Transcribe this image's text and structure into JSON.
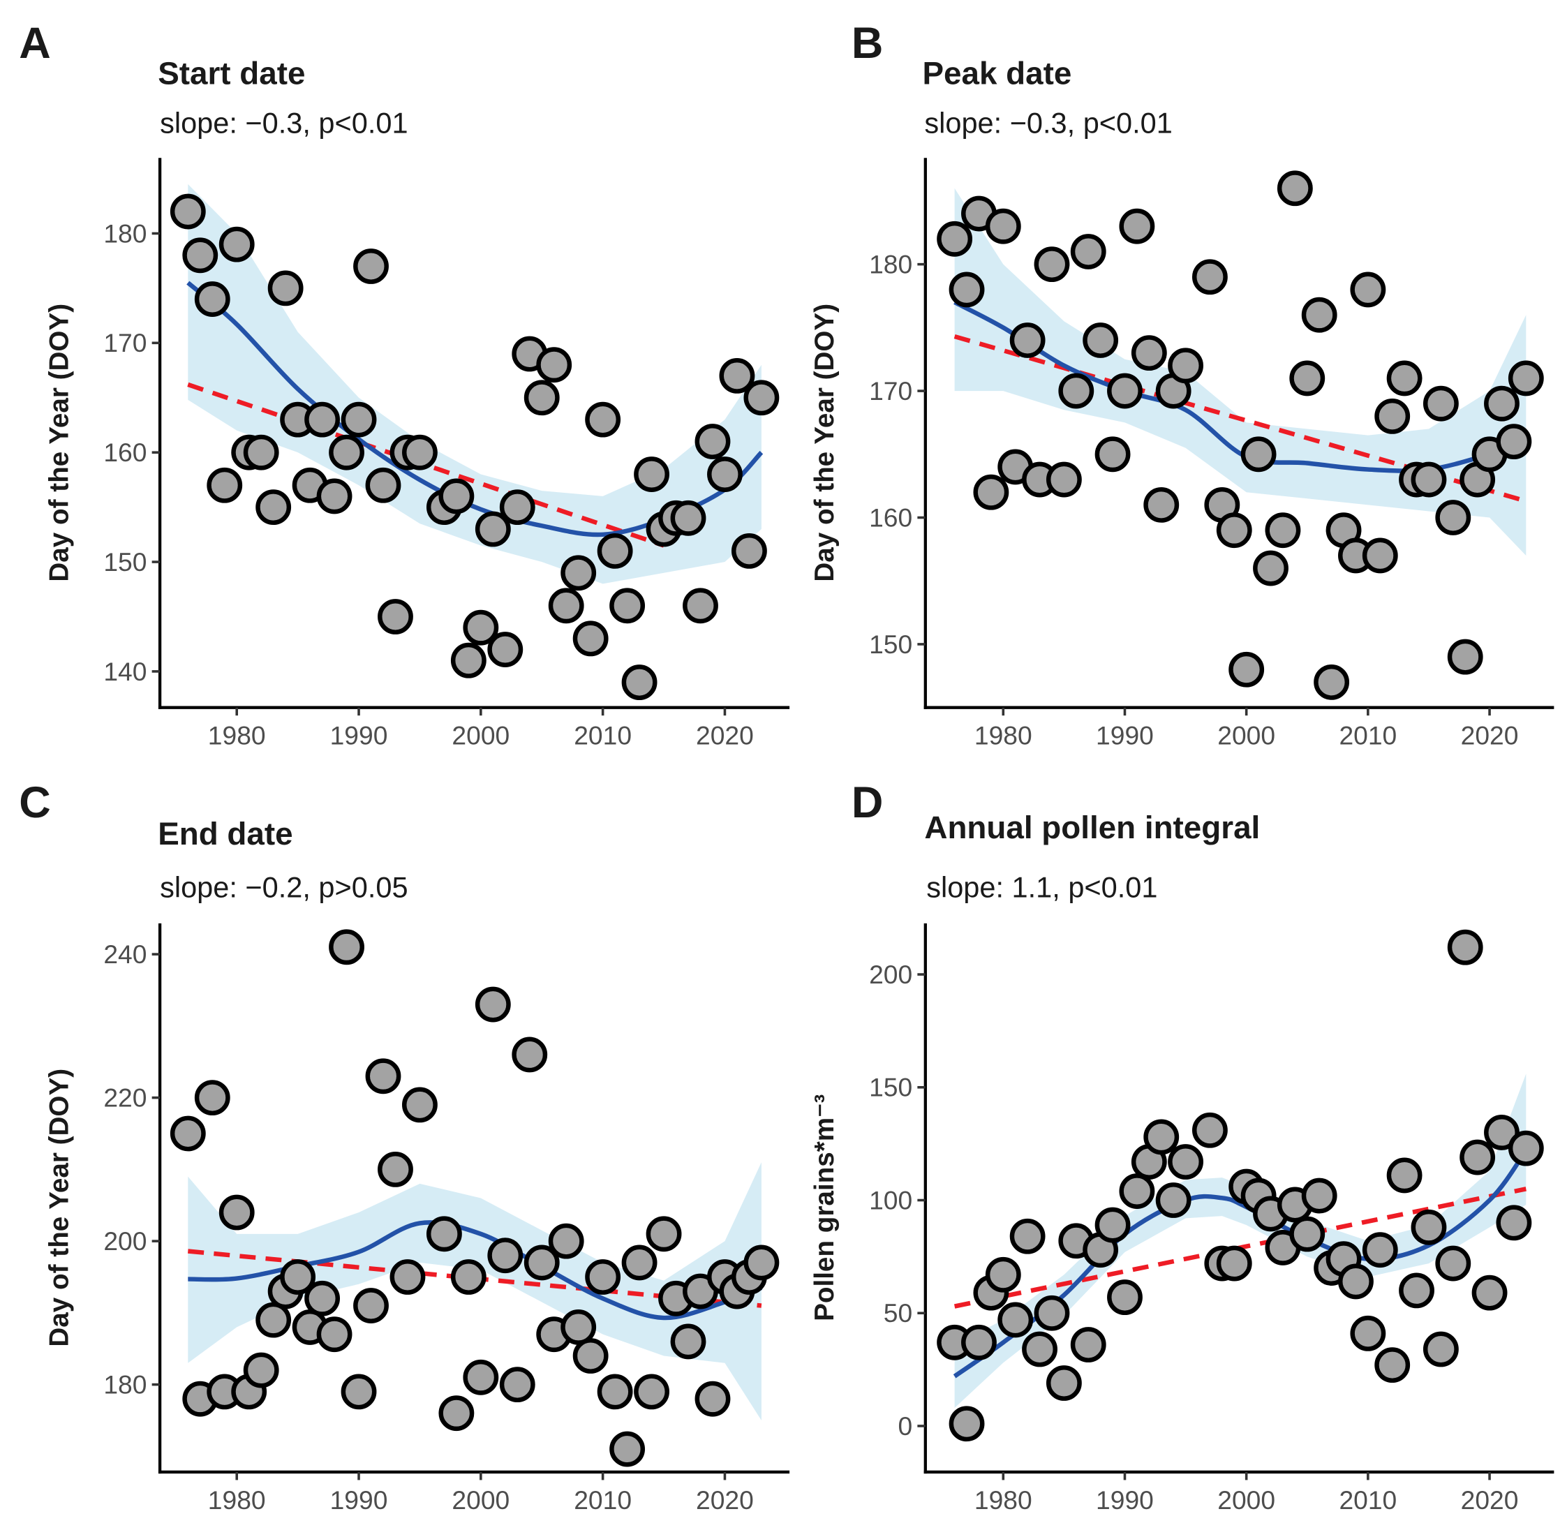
{
  "chart_data": [
    {
      "type": "scatter",
      "panel_label": "A",
      "title": "Start date",
      "subtitle": "slope: −0.3, p<0.01",
      "xlabel": "",
      "ylabel": "Day of the Year (DOY)",
      "xlim": [
        1973.7,
        2025.3
      ],
      "ylim": [
        136.7,
        186.9
      ],
      "xticks": [
        1980,
        1990,
        2000,
        2010,
        2020
      ],
      "yticks": [
        140,
        150,
        160,
        170,
        180
      ],
      "x": [
        1976,
        1977,
        1978,
        1979,
        1980,
        1981,
        1982,
        1983,
        1984,
        1985,
        1986,
        1987,
        1988,
        1989,
        1990,
        1991,
        1992,
        1993,
        1994,
        1995,
        1997,
        1998,
        1999,
        2000,
        2001,
        2002,
        2003,
        2004,
        2005,
        2006,
        2007,
        2008,
        2009,
        2010,
        2011,
        2012,
        2013,
        2014,
        2015,
        2016,
        2017,
        2018,
        2019,
        2020,
        2021,
        2022,
        2023
      ],
      "y": [
        182,
        178,
        174,
        157,
        179,
        160,
        160,
        155,
        175,
        163,
        157,
        163,
        156,
        160,
        163,
        177,
        157,
        145,
        160,
        160,
        155,
        156,
        141,
        144,
        153,
        142,
        155,
        169,
        165,
        168,
        146,
        149,
        143,
        163,
        151,
        146,
        139,
        158,
        153,
        154,
        154,
        146,
        161,
        158,
        167,
        151,
        165
      ],
      "linear_fit": {
        "x": [
          1976,
          2015
        ],
        "y": [
          166.2,
          151.5
        ]
      },
      "smooth": {
        "x": [
          1976,
          1980,
          1985,
          1990,
          1995,
          2000,
          2005,
          2010,
          2015,
          2020,
          2023
        ],
        "y": [
          175.5,
          171.7,
          165.8,
          161.2,
          157.5,
          154.8,
          153.3,
          152.5,
          153.9,
          156.6,
          160
        ],
        "lo": [
          164.8,
          162,
          160,
          157,
          153.5,
          151.5,
          150,
          148,
          149,
          150,
          153
        ],
        "hi": [
          184.5,
          180,
          171,
          165,
          161,
          158,
          156.5,
          156,
          158.5,
          163,
          168
        ]
      }
    },
    {
      "type": "scatter",
      "panel_label": "B",
      "title": "Peak date",
      "subtitle": "slope: −0.3, p<0.01",
      "xlabel": "",
      "ylabel": "Day of the Year (DOY)",
      "xlim": [
        1973.6,
        2025.3
      ],
      "ylim": [
        145.0,
        188.4
      ],
      "xticks": [
        1980,
        1990,
        2000,
        2010,
        2020
      ],
      "yticks": [
        150,
        160,
        170,
        180
      ],
      "x": [
        1976,
        1977,
        1978,
        1979,
        1980,
        1981,
        1982,
        1983,
        1984,
        1985,
        1986,
        1987,
        1988,
        1989,
        1990,
        1991,
        1992,
        1993,
        1994,
        1995,
        1997,
        1998,
        1999,
        2000,
        2001,
        2002,
        2003,
        2004,
        2005,
        2006,
        2007,
        2008,
        2009,
        2010,
        2011,
        2012,
        2013,
        2014,
        2015,
        2016,
        2017,
        2018,
        2019,
        2020,
        2021,
        2022,
        2023
      ],
      "y": [
        182,
        178,
        184,
        162,
        183,
        164,
        174,
        163,
        180,
        163,
        170,
        181,
        174,
        165,
        170,
        183,
        173,
        161,
        170,
        172,
        179,
        161,
        159,
        148,
        165,
        156,
        159,
        186,
        171,
        176,
        147,
        159,
        157,
        178,
        157,
        168,
        171,
        163,
        163,
        169,
        160,
        149,
        163,
        165,
        169,
        166,
        171
      ],
      "linear_fit": {
        "x": [
          1976,
          2023
        ],
        "y": [
          174.3,
          161.3
        ]
      },
      "smooth": {
        "x": [
          1976,
          1980,
          1985,
          1990,
          1995,
          2000,
          2005,
          2010,
          2015,
          2020,
          2023
        ],
        "y": [
          177,
          175,
          172,
          170,
          168.5,
          164.8,
          164.3,
          163.8,
          163.8,
          165,
          166
        ],
        "lo": [
          170,
          170,
          168.5,
          167.5,
          165.5,
          162,
          161.5,
          161,
          160.5,
          160,
          157
        ],
        "hi": [
          186,
          180,
          175.5,
          172.5,
          171.5,
          167.5,
          167,
          166.5,
          167,
          170,
          176
        ]
      }
    },
    {
      "type": "scatter",
      "panel_label": "C",
      "title": "End date",
      "subtitle": "slope: −0.2, p>0.05",
      "xlabel": "",
      "ylabel": "Day of the Year (DOY)",
      "xlim": [
        1973.7,
        2025.3
      ],
      "ylim": [
        167.8,
        244.3
      ],
      "xticks": [
        1980,
        1990,
        2000,
        2010,
        2020
      ],
      "yticks": [
        180,
        200,
        220,
        240
      ],
      "x": [
        1976,
        1977,
        1978,
        1979,
        1980,
        1981,
        1982,
        1983,
        1984,
        1985,
        1986,
        1987,
        1988,
        1989,
        1990,
        1991,
        1992,
        1993,
        1994,
        1995,
        1997,
        1998,
        1999,
        2000,
        2001,
        2002,
        2003,
        2004,
        2005,
        2006,
        2007,
        2008,
        2009,
        2010,
        2011,
        2012,
        2013,
        2014,
        2015,
        2016,
        2017,
        2018,
        2019,
        2020,
        2021,
        2022,
        2023
      ],
      "y": [
        215,
        178,
        220,
        179,
        204,
        179,
        182,
        189,
        193,
        195,
        188,
        192,
        187,
        241,
        179,
        191,
        223,
        210,
        195,
        219,
        201,
        176,
        195,
        181,
        233,
        198,
        180,
        226,
        197,
        187,
        200,
        188,
        184,
        195,
        179,
        171,
        197,
        179,
        201,
        192,
        186,
        193,
        178,
        195,
        193,
        195,
        197
      ],
      "linear_fit": {
        "x": [
          1976,
          2023
        ],
        "y": [
          198.6,
          191
        ]
      },
      "smooth": {
        "x": [
          1976,
          1980,
          1985,
          1990,
          1995,
          2000,
          2005,
          2010,
          2015,
          2020,
          2023
        ],
        "y": [
          194.7,
          194.8,
          196.5,
          198.5,
          202.5,
          201,
          196.5,
          192,
          189.3,
          191.5,
          193.5
        ],
        "lo": [
          183,
          188,
          192,
          194,
          197,
          196,
          191.5,
          187,
          184,
          183,
          175
        ],
        "hi": [
          209,
          201,
          201,
          204,
          208,
          206,
          201.5,
          197,
          194.5,
          200,
          211
        ]
      }
    },
    {
      "type": "scatter",
      "panel_label": "D",
      "title": "Annual pollen integral",
      "subtitle": "slope: 1.1, p<0.01",
      "xlabel": "",
      "ylabel": "Pollen grains*m⁻³",
      "xlim": [
        1973.6,
        2025.3
      ],
      "ylim": [
        -20.4,
        222.6
      ],
      "xticks": [
        1980,
        1990,
        2000,
        2010,
        2020
      ],
      "yticks": [
        0,
        50,
        100,
        150,
        200
      ],
      "x": [
        1976,
        1977,
        1978,
        1979,
        1980,
        1981,
        1982,
        1983,
        1984,
        1985,
        1986,
        1987,
        1988,
        1989,
        1990,
        1991,
        1992,
        1993,
        1994,
        1995,
        1997,
        1998,
        1999,
        2000,
        2001,
        2002,
        2003,
        2004,
        2005,
        2006,
        2007,
        2008,
        2009,
        2010,
        2011,
        2012,
        2013,
        2014,
        2015,
        2016,
        2017,
        2018,
        2019,
        2020,
        2021,
        2022,
        2023
      ],
      "y": [
        37,
        1,
        37,
        59,
        67,
        47,
        84,
        34,
        50,
        19,
        82,
        36,
        78,
        89,
        57,
        104,
        117,
        128,
        100,
        117,
        131,
        72,
        72,
        106,
        102,
        94,
        79,
        98,
        85,
        102,
        70,
        74,
        64,
        41,
        78,
        27,
        111,
        60,
        88,
        34,
        72,
        212,
        119,
        59,
        130,
        90,
        123
      ],
      "linear_fit": {
        "x": [
          1976,
          2023
        ],
        "y": [
          53,
          105
        ]
      },
      "smooth": {
        "x": [
          1976,
          1980,
          1985,
          1990,
          1995,
          1998,
          2000,
          2005,
          2010,
          2015,
          2020,
          2023
        ],
        "y": [
          22,
          37,
          58,
          85,
          100,
          101,
          97,
          83,
          74,
          80,
          100,
          122
        ],
        "lo": [
          8,
          28,
          49,
          77,
          92,
          93,
          89,
          75,
          66,
          72,
          88,
          98
        ],
        "hi": [
          36,
          47,
          67,
          93,
          109,
          110,
          106,
          91,
          82,
          89,
          113,
          156
        ]
      }
    }
  ],
  "colors": {
    "point_fill": "#a3a3a3",
    "point_stroke": "#000000",
    "smooth": "#2352a8",
    "ribbon": "#d6ecf5",
    "linear": "#ee1c25",
    "tick_text": "#4d4d4d"
  }
}
